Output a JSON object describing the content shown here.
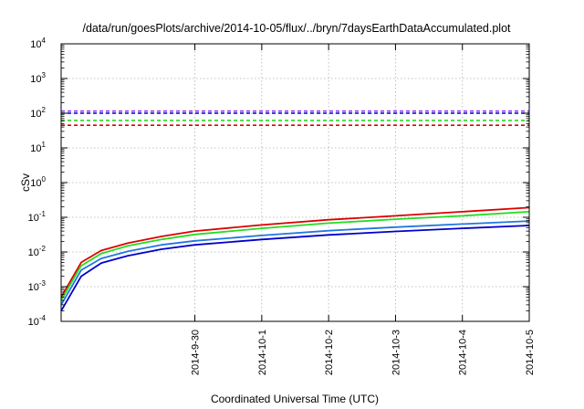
{
  "chart_data": {
    "type": "line",
    "title": "/data/run/goesPlots/archive/2014-10-05/flux/../bryn/7daysEarthDataAccumulated.plot",
    "xlabel": "Coordinated Universal Time (UTC)",
    "ylabel": "cSv",
    "yscale": "log",
    "ylim": [
      0.0001,
      10000
    ],
    "y_ticks": [
      {
        "base": "10",
        "exp": "-4",
        "value": 0.0001
      },
      {
        "base": "10",
        "exp": "-3",
        "value": 0.001
      },
      {
        "base": "10",
        "exp": "-2",
        "value": 0.01
      },
      {
        "base": "10",
        "exp": "-1",
        "value": 0.1
      },
      {
        "base": "10",
        "exp": "0",
        "value": 1
      },
      {
        "base": "10",
        "exp": "1",
        "value": 10
      },
      {
        "base": "10",
        "exp": "2",
        "value": 100
      },
      {
        "base": "10",
        "exp": "3",
        "value": 1000
      },
      {
        "base": "10",
        "exp": "4",
        "value": 10000
      }
    ],
    "xlim": [
      "2014-09-28",
      "2014-10-05"
    ],
    "x_ticks": [
      "2014-9-30",
      "2014-10-1",
      "2014-10-2",
      "2014-10-3",
      "2014-10-4",
      "2014-10-5"
    ],
    "grid": true,
    "series": [
      {
        "color": "#dd0000",
        "x": [
          "2014-09-28",
          "2014-09-28.3",
          "2014-09-28.6",
          "2014-09-29",
          "2014-09-29.5",
          "2014-09-30",
          "2014-10-01",
          "2014-10-02",
          "2014-10-03",
          "2014-10-04",
          "2014-10-05"
        ],
        "y": [
          0.0005,
          0.005,
          0.011,
          0.018,
          0.028,
          0.04,
          0.06,
          0.085,
          0.11,
          0.145,
          0.19
        ]
      },
      {
        "color": "#22dd22",
        "x": [
          "2014-09-28",
          "2014-09-28.3",
          "2014-09-28.6",
          "2014-09-29",
          "2014-09-29.5",
          "2014-09-30",
          "2014-10-01",
          "2014-10-02",
          "2014-10-03",
          "2014-10-04",
          "2014-10-05"
        ],
        "y": [
          0.0004,
          0.004,
          0.009,
          0.015,
          0.023,
          0.032,
          0.048,
          0.068,
          0.088,
          0.11,
          0.145
        ]
      },
      {
        "color": "#2277dd",
        "x": [
          "2014-09-28",
          "2014-09-28.3",
          "2014-09-28.6",
          "2014-09-29",
          "2014-09-29.5",
          "2014-09-30",
          "2014-10-01",
          "2014-10-02",
          "2014-10-03",
          "2014-10-04",
          "2014-10-05"
        ],
        "y": [
          0.0003,
          0.003,
          0.0065,
          0.0105,
          0.016,
          0.021,
          0.03,
          0.041,
          0.052,
          0.064,
          0.078
        ]
      },
      {
        "color": "#0000cc",
        "x": [
          "2014-09-28",
          "2014-09-28.3",
          "2014-09-28.6",
          "2014-09-29",
          "2014-09-29.5",
          "2014-09-30",
          "2014-10-01",
          "2014-10-02",
          "2014-10-03",
          "2014-10-04",
          "2014-10-05"
        ],
        "y": [
          0.0002,
          0.002,
          0.0048,
          0.0078,
          0.012,
          0.016,
          0.023,
          0.031,
          0.039,
          0.048,
          0.058
        ]
      }
    ],
    "reference_lines": [
      {
        "color": "#9933ff",
        "y": 115,
        "style": "dashed"
      },
      {
        "color": "#0000cc",
        "y": 100,
        "style": "dashed"
      },
      {
        "color": "#22dd22",
        "y": 62,
        "style": "dashed"
      },
      {
        "color": "#dd0000",
        "y": 45,
        "style": "dashed"
      }
    ]
  }
}
